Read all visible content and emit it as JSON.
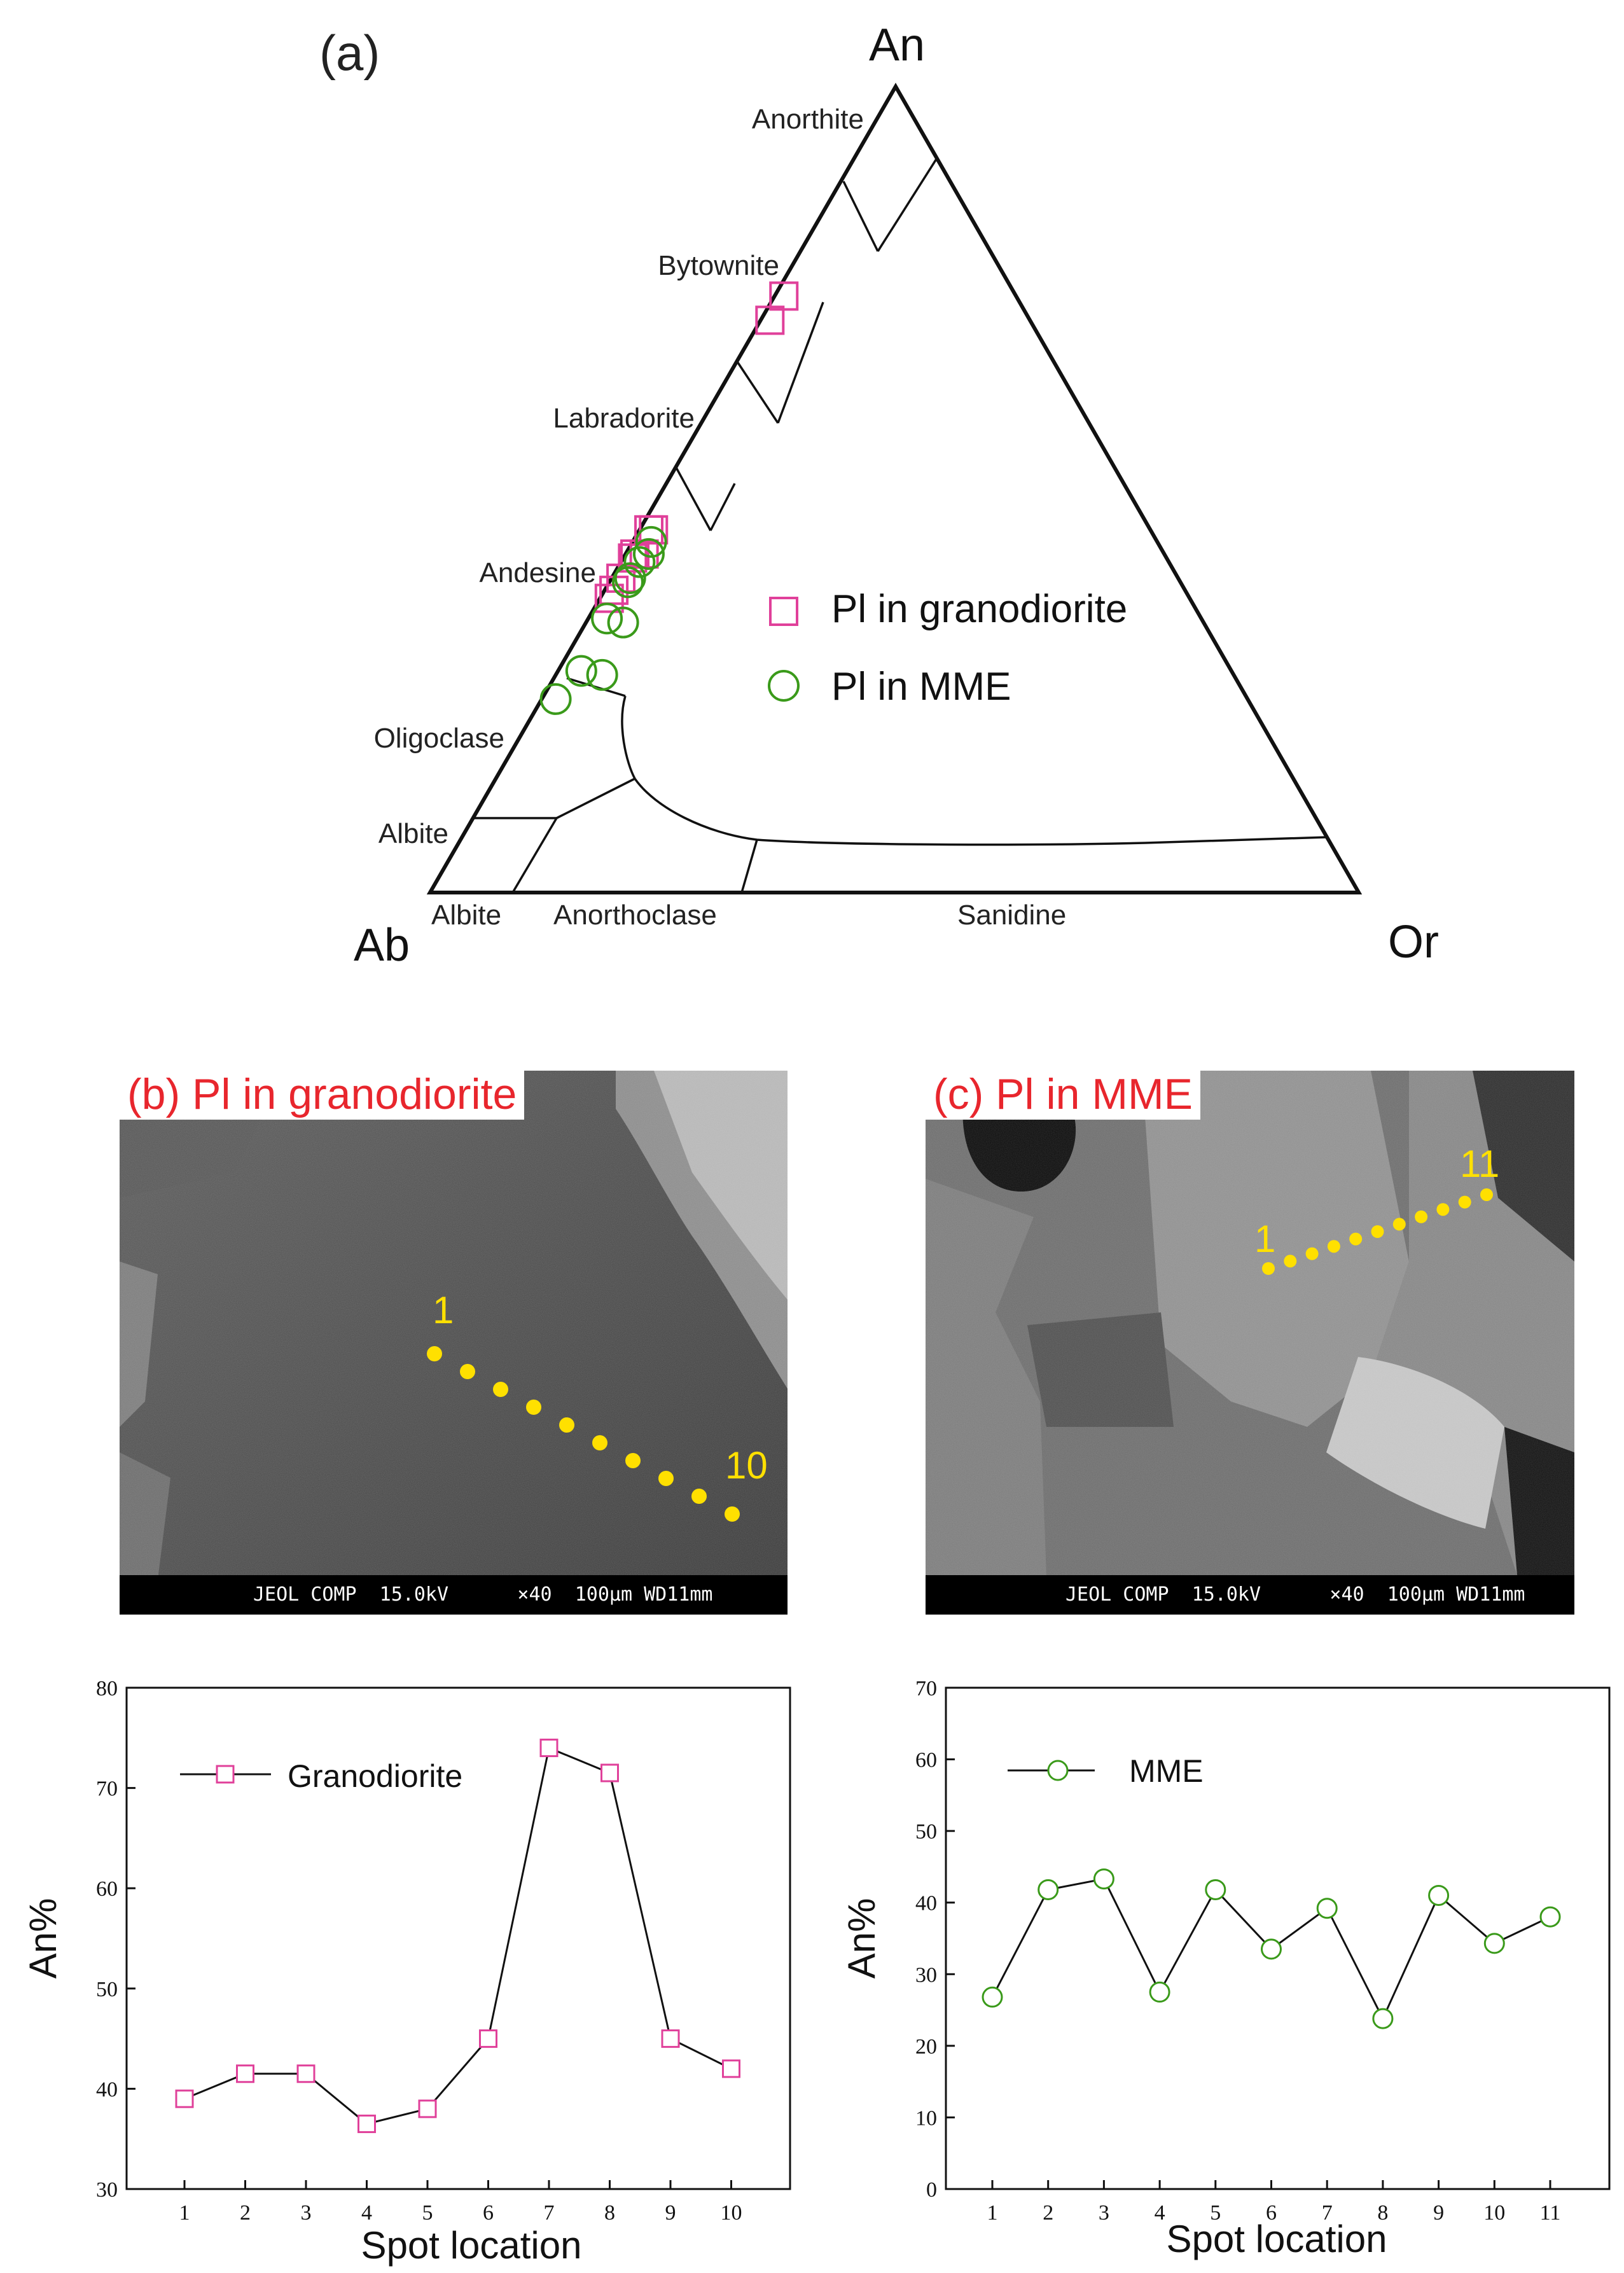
{
  "ternary": {
    "panel_label": "(a)",
    "apex_labels": {
      "top": "An",
      "left": "Ab",
      "right": "Or"
    },
    "field_labels": {
      "anorthite": "Anorthite",
      "bytownite": "Bytownite",
      "labradorite": "Labradorite",
      "andesine": "Andesine",
      "oligoclase": "Oligoclase",
      "albite_side": "Albite",
      "albite_base": "Albite",
      "anorthoclase": "Anorthoclase",
      "sanidine": "Sanidine"
    },
    "legend": [
      {
        "label": "Pl in granodiorite",
        "marker": "square",
        "color": "#e0409a"
      },
      {
        "label": "Pl in MME",
        "marker": "circle",
        "color": "#3a9a1a"
      }
    ]
  },
  "sem_b": {
    "title": "(b) Pl in granodiorite",
    "scale_bar": "JEOL COMP  15.0kV      ×40  100μm WD11mm",
    "spot_first": "1",
    "spot_last": "10"
  },
  "sem_c": {
    "title": "(c) Pl in MME",
    "scale_bar": "JEOL COMP  15.0kV      ×40  100μm WD11mm",
    "spot_first": "1",
    "spot_last": "11"
  },
  "colors": {
    "granodiorite": "#e0409a",
    "mme": "#3a9a1a",
    "spot": "#ffe000",
    "title_red": "#e8262d"
  },
  "chart_data": [
    {
      "type": "ternary-scatter",
      "axes": [
        "An",
        "Ab",
        "Or"
      ],
      "series": [
        {
          "name": "Pl in granodiorite",
          "points": [
            {
              "An": 74,
              "Ab": 25,
              "Or": 1
            },
            {
              "An": 71,
              "Ab": 28,
              "Or": 1
            },
            {
              "An": 45,
              "Ab": 54,
              "Or": 1
            },
            {
              "An": 42,
              "Ab": 57,
              "Or": 1
            },
            {
              "An": 41.5,
              "Ab": 57.5,
              "Or": 1
            },
            {
              "An": 39,
              "Ab": 60,
              "Or": 1
            },
            {
              "An": 37.5,
              "Ab": 61.5,
              "Or": 1
            },
            {
              "An": 36.5,
              "Ab": 62.5,
              "Or": 1
            },
            {
              "An": 45,
              "Ab": 53.5,
              "Or": 1.5
            },
            {
              "An": 42,
              "Ab": 56,
              "Or": 2
            }
          ]
        },
        {
          "name": "Pl in MME",
          "points": [
            {
              "An": 43.5,
              "Ab": 54.5,
              "Or": 2
            },
            {
              "An": 42,
              "Ab": 55.5,
              "Or": 2.5
            },
            {
              "An": 41,
              "Ab": 57,
              "Or": 2
            },
            {
              "An": 39,
              "Ab": 59,
              "Or": 2
            },
            {
              "An": 38.5,
              "Ab": 59.5,
              "Or": 2
            },
            {
              "An": 34,
              "Ab": 64,
              "Or": 2
            },
            {
              "An": 33.5,
              "Ab": 62.5,
              "Or": 4
            },
            {
              "An": 27.5,
              "Ab": 70,
              "Or": 2.5
            },
            {
              "An": 27,
              "Ab": 68,
              "Or": 5
            },
            {
              "An": 24,
              "Ab": 74.5,
              "Or": 1.5
            }
          ]
        }
      ]
    },
    {
      "type": "line",
      "xlabel": "Spot location",
      "ylabel": "An%",
      "x": [
        1,
        2,
        3,
        4,
        5,
        6,
        7,
        8,
        9,
        10
      ],
      "ylim": [
        30,
        80
      ],
      "yticks": [
        30,
        40,
        50,
        60,
        70,
        80
      ],
      "series": [
        {
          "name": "Granodiorite",
          "values": [
            39,
            41.5,
            41.5,
            36.5,
            38,
            45,
            74,
            71.5,
            45,
            42
          ]
        }
      ]
    },
    {
      "type": "line",
      "xlabel": "Spot location",
      "ylabel": "An%",
      "x": [
        1,
        2,
        3,
        4,
        5,
        6,
        7,
        8,
        9,
        10,
        11
      ],
      "ylim": [
        0,
        70
      ],
      "yticks": [
        0,
        10,
        20,
        30,
        40,
        50,
        60,
        70
      ],
      "series": [
        {
          "name": "MME",
          "values": [
            26.8,
            41.8,
            43.3,
            27.5,
            41.8,
            33.5,
            39.2,
            23.8,
            41,
            34.3,
            38
          ]
        }
      ]
    }
  ]
}
